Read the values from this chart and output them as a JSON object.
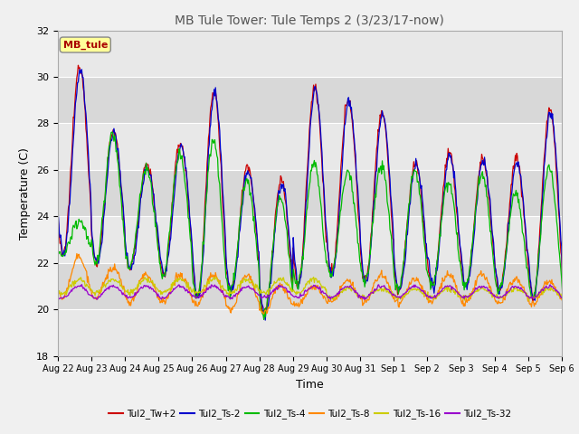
{
  "title": "MB Tule Tower: Tule Temps 2 (3/23/17-now)",
  "xlabel": "Time",
  "ylabel": "Temperature (C)",
  "ylim": [
    18,
    32
  ],
  "yticks": [
    18,
    20,
    22,
    24,
    26,
    28,
    30,
    32
  ],
  "annotation_text": "MB_tule",
  "annotation_color": "#aa0000",
  "annotation_bg": "#ffff99",
  "fig_bg_color": "#f0f0f0",
  "plot_bg_color": "#e8e8e8",
  "band_colors": [
    "#e8e8e8",
    "#d8d8d8"
  ],
  "legend_entries": [
    "Tul2_Tw+2",
    "Tul2_Ts-2",
    "Tul2_Ts-4",
    "Tul2_Ts-8",
    "Tul2_Ts-16",
    "Tul2_Ts-32"
  ],
  "line_colors": [
    "#cc0000",
    "#0000cc",
    "#00bb00",
    "#ff8800",
    "#cccc00",
    "#9900cc"
  ],
  "x_tick_labels": [
    "Aug 22",
    "Aug 23",
    "Aug 24",
    "Aug 25",
    "Aug 26",
    "Aug 27",
    "Aug 28",
    "Aug 29",
    "Aug 30",
    "Aug 31",
    "Sep 1",
    "Sep 2",
    "Sep 3",
    "Sep 4",
    "Sep 5",
    "Sep 6"
  ],
  "figsize": [
    6.4,
    4.8
  ],
  "dpi": 100
}
